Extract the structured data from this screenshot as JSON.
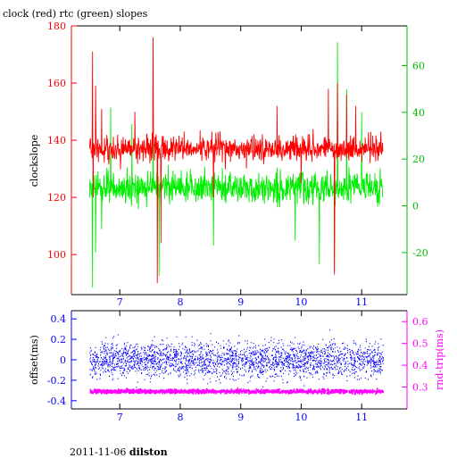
{
  "header": {
    "title": "clock (red) rtc (green) slopes"
  },
  "footer": {
    "date": "2011-11-06",
    "station": "dilston"
  },
  "colors": {
    "clock": "#ff0000",
    "rtc": "#00ee00",
    "offset": "#0000ff",
    "rndtrip": "#ff00ff",
    "left_axis_top": "#ff0000",
    "right_axis_top": "#00bb00",
    "left_axis_bottom": "#0000ff",
    "right_axis_bottom": "#ff00ff"
  },
  "chart_data": [
    {
      "type": "line",
      "title": "clock (red) rtc (green) slopes",
      "xlabel": "",
      "ylabel": "clockslope",
      "y2label": "",
      "xlim": [
        6.2,
        11.75
      ],
      "ylim": [
        86,
        180
      ],
      "y2lim": [
        -38,
        77
      ],
      "xticks": [
        7,
        8,
        9,
        10,
        11
      ],
      "yticks": [
        100,
        120,
        140,
        160,
        180
      ],
      "y2ticks": [
        -20,
        0,
        20,
        40,
        60
      ],
      "series": [
        {
          "name": "clock",
          "axis": "left",
          "x_range": [
            6.5,
            11.35
          ],
          "baseline": 137,
          "noise": 4,
          "spikes": [
            {
              "x": 6.55,
              "y": 171
            },
            {
              "x": 6.56,
              "y": 120
            },
            {
              "x": 6.6,
              "y": 159
            },
            {
              "x": 6.7,
              "y": 151
            },
            {
              "x": 7.25,
              "y": 150
            },
            {
              "x": 7.55,
              "y": 176
            },
            {
              "x": 7.62,
              "y": 90
            },
            {
              "x": 7.68,
              "y": 104
            },
            {
              "x": 8.55,
              "y": 120
            },
            {
              "x": 9.6,
              "y": 152
            },
            {
              "x": 10.0,
              "y": 125
            },
            {
              "x": 10.45,
              "y": 158
            },
            {
              "x": 10.55,
              "y": 93
            },
            {
              "x": 10.6,
              "y": 160
            },
            {
              "x": 10.75,
              "y": 156
            },
            {
              "x": 10.9,
              "y": 152
            }
          ]
        },
        {
          "name": "rtc",
          "axis": "right",
          "x_range": [
            6.5,
            11.35
          ],
          "baseline": 8,
          "noise": 6,
          "spikes": [
            {
              "x": 6.55,
              "y": -35
            },
            {
              "x": 6.6,
              "y": -20
            },
            {
              "x": 6.7,
              "y": -10
            },
            {
              "x": 6.85,
              "y": 42
            },
            {
              "x": 7.2,
              "y": 35
            },
            {
              "x": 7.55,
              "y": 33
            },
            {
              "x": 7.65,
              "y": -30
            },
            {
              "x": 8.55,
              "y": -17
            },
            {
              "x": 9.9,
              "y": -15
            },
            {
              "x": 10.3,
              "y": -25
            },
            {
              "x": 10.55,
              "y": -28
            },
            {
              "x": 10.6,
              "y": 70
            },
            {
              "x": 10.75,
              "y": 50
            },
            {
              "x": 11.0,
              "y": 40
            }
          ]
        }
      ]
    },
    {
      "type": "scatter",
      "xlabel": "",
      "ylabel": "offset(ms)",
      "y2label": "rnd-trip(ms)",
      "xlim": [
        6.2,
        11.75
      ],
      "ylim": [
        -0.48,
        0.48
      ],
      "y2lim": [
        0.2,
        0.65
      ],
      "xticks": [
        7,
        8,
        9,
        10,
        11
      ],
      "yticks": [
        -0.4,
        -0.2,
        0,
        0.2,
        0.4
      ],
      "y2ticks": [
        0.3,
        0.4,
        0.5,
        0.6
      ],
      "series": [
        {
          "name": "offset",
          "axis": "left",
          "x_range": [
            6.5,
            11.35
          ],
          "center": 0.0,
          "spread": 0.16
        },
        {
          "name": "rnd-trip",
          "axis": "right",
          "x_range": [
            6.5,
            11.35
          ],
          "center": 0.28,
          "spread": 0.006
        }
      ]
    }
  ]
}
